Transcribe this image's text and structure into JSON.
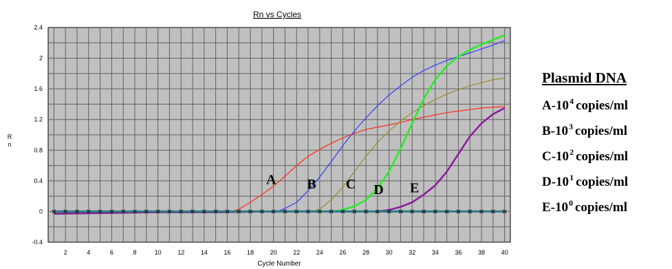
{
  "chart_data": {
    "type": "line",
    "title": "Rn vs Cycles",
    "xlabel": "Cycle Number",
    "ylabel": "Rn",
    "xlim": [
      0.5,
      40.5
    ],
    "ylim": [
      -0.4,
      2.4
    ],
    "xticks": [
      2,
      4,
      6,
      8,
      10,
      12,
      14,
      16,
      18,
      20,
      22,
      24,
      26,
      28,
      30,
      32,
      34,
      36,
      38,
      40
    ],
    "yticks": [
      -0.4,
      0,
      0.4,
      0.8,
      1.2,
      1.6,
      2,
      2.4
    ],
    "ytick_labels": [
      "-0.4",
      "0",
      "0.4",
      "0.8",
      "1.2",
      "1.6",
      "2",
      "2.4"
    ],
    "grid": true,
    "background": "#c0c0c0",
    "series": [
      {
        "name": "A",
        "color": "#ff2a1a",
        "x": [
          1,
          5,
          10,
          15,
          16,
          16.5,
          17,
          18,
          19,
          20,
          21,
          22,
          23,
          24,
          25,
          26,
          27,
          28,
          29,
          30,
          31,
          32,
          33,
          34,
          35,
          36,
          37,
          38,
          39,
          40
        ],
        "y": [
          -0.02,
          -0.02,
          -0.01,
          -0.01,
          -0.01,
          0.0,
          0.03,
          0.12,
          0.22,
          0.33,
          0.46,
          0.6,
          0.72,
          0.81,
          0.89,
          0.96,
          1.02,
          1.07,
          1.1,
          1.13,
          1.16,
          1.2,
          1.23,
          1.26,
          1.29,
          1.31,
          1.33,
          1.35,
          1.36,
          1.37
        ]
      },
      {
        "name": "B",
        "color": "#2a3cff",
        "x": [
          1,
          5,
          10,
          15,
          20,
          20.5,
          21,
          22,
          23,
          24,
          25,
          26,
          27,
          28,
          29,
          30,
          31,
          32,
          33,
          34,
          35,
          36,
          37,
          38,
          39,
          40
        ],
        "y": [
          -0.02,
          -0.02,
          -0.01,
          -0.01,
          0.0,
          0.01,
          0.04,
          0.12,
          0.27,
          0.45,
          0.65,
          0.86,
          1.05,
          1.22,
          1.38,
          1.52,
          1.64,
          1.75,
          1.84,
          1.91,
          1.97,
          2.02,
          2.07,
          2.12,
          2.17,
          2.23
        ]
      },
      {
        "name": "C",
        "color": "#9a8a2a",
        "x": [
          1,
          5,
          10,
          15,
          20,
          23.5,
          24,
          25,
          26,
          27,
          28,
          29,
          30,
          31,
          32,
          33,
          34,
          35,
          36,
          37,
          38,
          39,
          40
        ],
        "y": [
          -0.02,
          -0.02,
          -0.01,
          -0.01,
          0.0,
          0.01,
          0.03,
          0.15,
          0.32,
          0.52,
          0.72,
          0.9,
          1.05,
          1.18,
          1.29,
          1.38,
          1.46,
          1.53,
          1.59,
          1.64,
          1.68,
          1.72,
          1.74
        ]
      },
      {
        "name": "D",
        "color": "#22ee22",
        "x": [
          1,
          5,
          10,
          15,
          20,
          25,
          26,
          27,
          28,
          29,
          30,
          31,
          32,
          33,
          34,
          35,
          36,
          37,
          38,
          39,
          40
        ],
        "y": [
          -0.03,
          -0.02,
          -0.01,
          -0.01,
          0.0,
          0.0,
          0.02,
          0.07,
          0.15,
          0.3,
          0.52,
          0.82,
          1.15,
          1.47,
          1.72,
          1.9,
          2.02,
          2.11,
          2.18,
          2.24,
          2.3
        ]
      },
      {
        "name": "E",
        "color": "#8a1a9a",
        "x": [
          1,
          5,
          10,
          15,
          20,
          25,
          29,
          30,
          31,
          32,
          33,
          34,
          35,
          36,
          37,
          38,
          39,
          40
        ],
        "y": [
          -0.03,
          -0.02,
          -0.01,
          -0.01,
          0.0,
          0.0,
          0.0,
          0.02,
          0.06,
          0.12,
          0.22,
          0.34,
          0.52,
          0.75,
          0.98,
          1.15,
          1.27,
          1.35
        ]
      }
    ],
    "threshold": {
      "y": 0,
      "color": "#2a7a8a"
    },
    "annotations": [
      {
        "text": "A",
        "x": 19.8,
        "y": 0.36
      },
      {
        "text": "B",
        "x": 23.3,
        "y": 0.3
      },
      {
        "text": "C",
        "x": 26.7,
        "y": 0.3
      },
      {
        "text": "D",
        "x": 29.1,
        "y": 0.23
      },
      {
        "text": "E",
        "x": 32.2,
        "y": 0.25
      }
    ]
  },
  "legend": {
    "title": "Plasmid DNA",
    "entries": [
      {
        "prefix": "A-10",
        "exp": "4",
        "suffix": "copies/ml"
      },
      {
        "prefix": "B-10",
        "exp": "3",
        "suffix": "copies/ml"
      },
      {
        "prefix": "C-10",
        "exp": "2",
        "suffix": "copies/ml"
      },
      {
        "prefix": "D-10",
        "exp": "1",
        "suffix": "copies/ml"
      },
      {
        "prefix": "E-10",
        "exp": "0",
        "suffix": "copies/ml"
      }
    ]
  }
}
